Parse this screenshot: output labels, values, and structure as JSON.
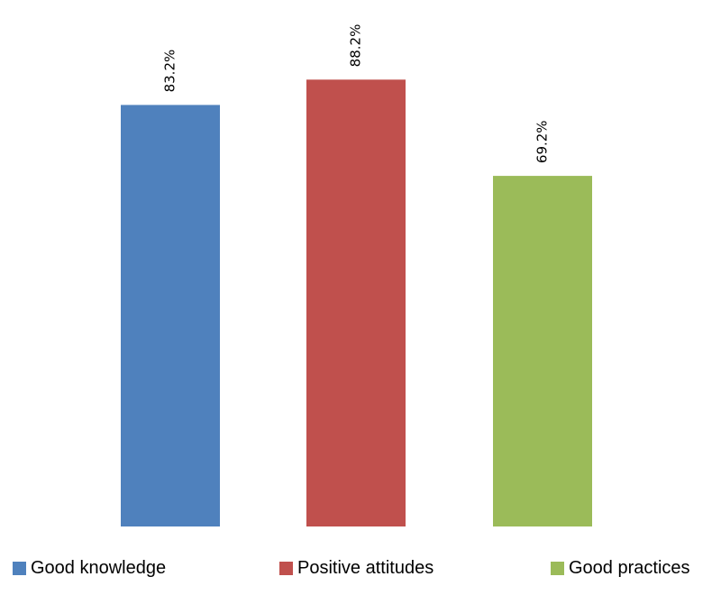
{
  "chart_data": {
    "type": "bar",
    "title": "",
    "xlabel": "",
    "ylabel": "",
    "ylim": [
      0,
      100
    ],
    "grid": false,
    "legend_position": "bottom",
    "categories": [
      "Good knowledge",
      "Positive attitudes",
      "Good practices"
    ],
    "values": [
      83.2,
      88.2,
      69.2
    ],
    "data_labels": [
      "83.2%",
      "88.2%",
      "69.2%"
    ],
    "colors": [
      "#4f81bd",
      "#c0504d",
      "#9bbb59"
    ]
  },
  "legend": {
    "items": [
      {
        "label": "Good knowledge",
        "color": "#4f81bd"
      },
      {
        "label": "Positive attitudes",
        "color": "#c0504d"
      },
      {
        "label": "Good practices",
        "color": "#9bbb59"
      }
    ]
  }
}
